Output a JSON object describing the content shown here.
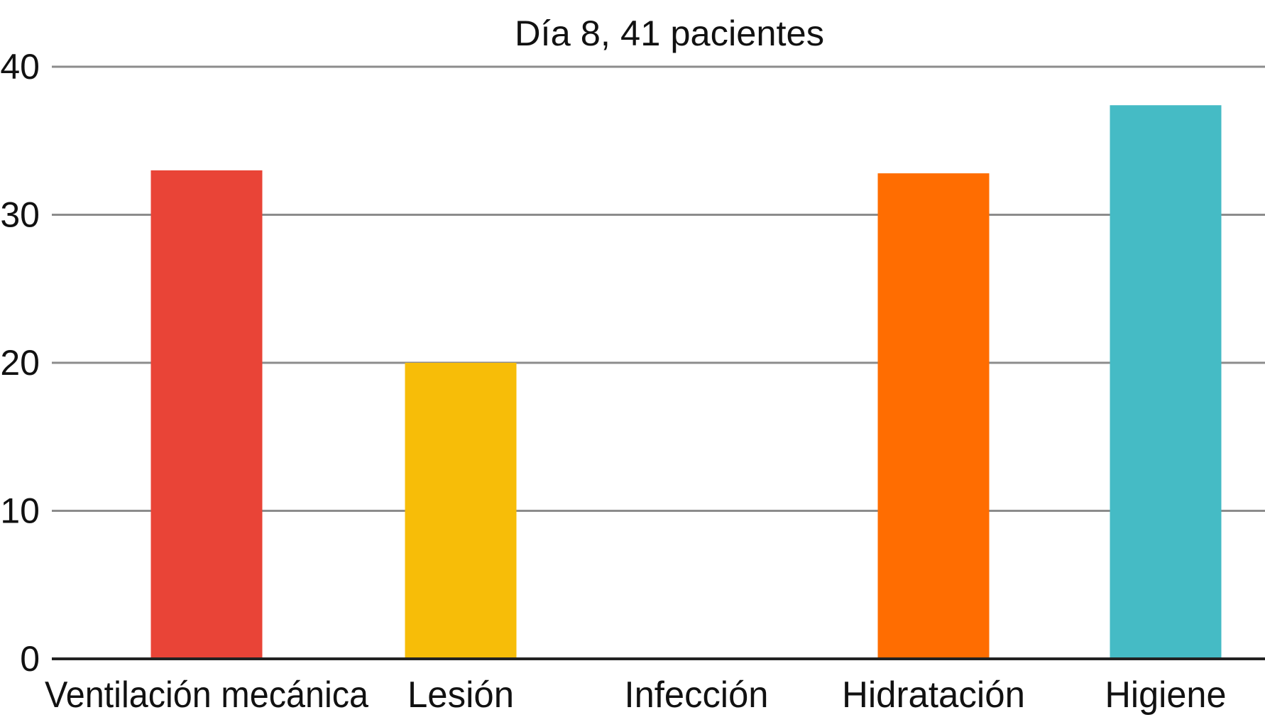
{
  "chart_data": {
    "type": "bar",
    "title": "Día 8, 41 pacientes",
    "xlabel": "",
    "ylabel": "",
    "categories": [
      "Ventilación mecánica",
      "Lesión",
      "Infección",
      "Hidratación",
      "Higiene"
    ],
    "values": [
      33,
      20,
      0,
      32.8,
      37.4
    ],
    "colors": [
      "#e94437",
      "#f7bd08",
      "#ffffff",
      "#ff6d01",
      "#45bbc5"
    ],
    "ylim": [
      0,
      40
    ],
    "yticks": [
      0,
      10,
      20,
      30,
      40
    ],
    "grid": true,
    "legend": "none"
  }
}
